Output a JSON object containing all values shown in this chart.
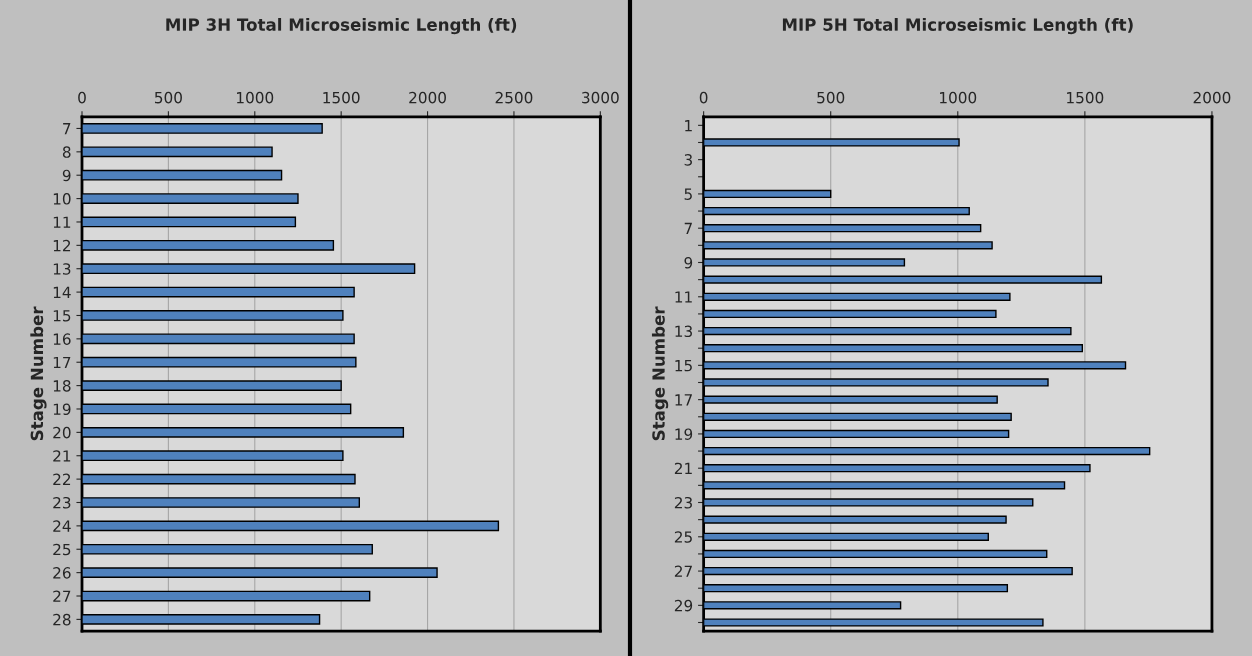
{
  "chart_data": [
    {
      "type": "bar",
      "orientation": "horizontal",
      "title": "MIP 3H Total Microseismic Length (ft)",
      "ylabel": "Stage Number",
      "color": "#4f81bd",
      "grid": "x",
      "xlim": [
        0,
        3000
      ],
      "xticks": [
        0,
        500,
        1000,
        1500,
        2000,
        2500,
        3000
      ],
      "categories": [
        "7",
        "8",
        "9",
        "10",
        "11",
        "12",
        "13",
        "14",
        "15",
        "16",
        "17",
        "18",
        "19",
        "20",
        "21",
        "22",
        "23",
        "24",
        "25",
        "26",
        "27",
        "28"
      ],
      "values": [
        1390,
        1100,
        1155,
        1250,
        1235,
        1455,
        1925,
        1575,
        1510,
        1575,
        1585,
        1500,
        1555,
        1860,
        1510,
        1580,
        1605,
        2410,
        1680,
        2055,
        1665,
        1375
      ]
    },
    {
      "type": "bar",
      "orientation": "horizontal",
      "title": "MIP 5H Total Microseismic Length (ft)",
      "ylabel": "Stage Number",
      "color": "#4f81bd",
      "grid": "x",
      "xlim": [
        0,
        2000
      ],
      "xticks": [
        0,
        500,
        1000,
        1500,
        2000
      ],
      "categories": [
        "1",
        null,
        "3",
        null,
        "5",
        null,
        "7",
        null,
        "9",
        null,
        "11",
        null,
        "13",
        null,
        "15",
        null,
        "17",
        null,
        "19",
        null,
        "21",
        null,
        "23",
        null,
        "25",
        null,
        "27",
        null,
        "29",
        null
      ],
      "values": [
        null,
        1005,
        null,
        null,
        500,
        1045,
        1090,
        1135,
        790,
        1565,
        1205,
        1150,
        1445,
        1490,
        1660,
        1355,
        1155,
        1210,
        1200,
        1755,
        1520,
        1420,
        1295,
        1190,
        1120,
        1350,
        1450,
        1195,
        775,
        1335
      ]
    }
  ]
}
